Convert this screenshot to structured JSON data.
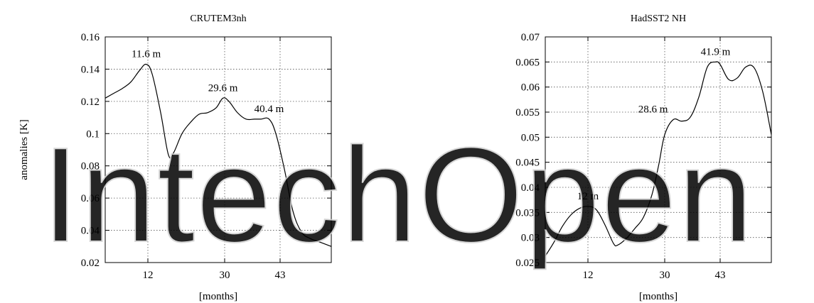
{
  "chart_data": [
    {
      "type": "line",
      "title": "CRUTEM3nh",
      "xlabel": "[months]",
      "ylabel": "anomalies [K]",
      "xlim": [
        2,
        55
      ],
      "ylim": [
        0.02,
        0.16
      ],
      "yticks": [
        0.02,
        0.04,
        0.06,
        0.08,
        0.1,
        0.12,
        0.14,
        0.16
      ],
      "ytick_labels": [
        "0.02",
        "0.04",
        "0.06",
        "0.08",
        "0.1",
        "0.12",
        "0.14",
        "0.16"
      ],
      "xticks": [
        12,
        30,
        43
      ],
      "xtick_labels": [
        "12",
        "30",
        "43"
      ],
      "grid": true,
      "x": [
        2,
        4,
        6,
        8,
        10,
        11.6,
        13,
        15,
        16.8,
        18,
        20,
        22,
        24,
        26,
        28,
        29.6,
        31,
        33,
        35,
        37,
        38.5,
        40.4,
        42,
        44,
        46,
        48,
        50,
        52,
        55
      ],
      "y": [
        0.122,
        0.125,
        0.128,
        0.132,
        0.139,
        0.143,
        0.137,
        0.113,
        0.087,
        0.088,
        0.1,
        0.107,
        0.112,
        0.113,
        0.116,
        0.122,
        0.12,
        0.113,
        0.109,
        0.109,
        0.109,
        0.109,
        0.1,
        0.078,
        0.052,
        0.039,
        0.035,
        0.033,
        0.03
      ],
      "annotations": [
        {
          "text": "11.6 m",
          "x": 11.6,
          "y": 0.143
        },
        {
          "text": "29.6 m",
          "x": 29.6,
          "y": 0.122
        },
        {
          "text": "40.4 m",
          "x": 40.4,
          "y": 0.109
        }
      ]
    },
    {
      "type": "line",
      "title": "HadSST2 NH",
      "xlabel": "[months]",
      "ylabel": "",
      "xlim": [
        2,
        55
      ],
      "ylim": [
        0.025,
        0.07
      ],
      "yticks": [
        0.025,
        0.03,
        0.035,
        0.04,
        0.045,
        0.05,
        0.055,
        0.06,
        0.065,
        0.07
      ],
      "ytick_labels": [
        "0.025",
        "0.03",
        "0.035",
        "0.04",
        "0.045",
        "0.05",
        "0.055",
        "0.06",
        "0.065",
        "0.07"
      ],
      "xticks": [
        12,
        30,
        43
      ],
      "xtick_labels": [
        "12",
        "30",
        "43"
      ],
      "grid": true,
      "x": [
        2,
        4,
        6,
        8,
        10,
        12,
        14,
        16,
        18,
        19,
        21,
        23,
        25,
        27,
        28.6,
        30,
        32,
        34,
        36,
        38,
        40,
        41.9,
        43,
        45,
        47,
        49,
        51,
        53,
        55
      ],
      "y": [
        0.0263,
        0.029,
        0.0322,
        0.0345,
        0.0358,
        0.0362,
        0.0355,
        0.0325,
        0.0288,
        0.0285,
        0.0298,
        0.0318,
        0.034,
        0.0385,
        0.0445,
        0.0505,
        0.0535,
        0.0532,
        0.054,
        0.058,
        0.064,
        0.065,
        0.0645,
        0.0615,
        0.0618,
        0.064,
        0.0638,
        0.059,
        0.0505
      ],
      "annotations": [
        {
          "text": "12 m",
          "x": 12,
          "y": 0.0362
        },
        {
          "text": "28.6 m",
          "x": 28.6,
          "y": 0.0535
        },
        {
          "text": "41.9 m",
          "x": 41.9,
          "y": 0.065
        }
      ]
    }
  ],
  "watermark": {
    "text": "IntechOpen",
    "color": "#c8c8c8"
  }
}
